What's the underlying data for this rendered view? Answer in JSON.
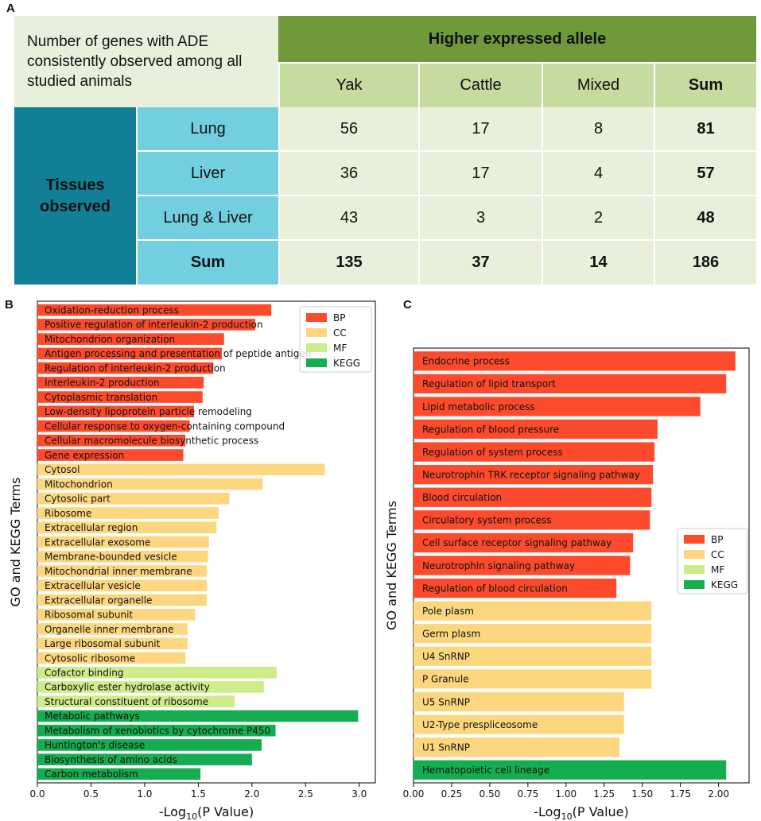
{
  "panels": {
    "a": "A",
    "b": "B",
    "c": "C"
  },
  "table": {
    "title": "Number of genes with ADE consistently observed among all studied animals",
    "group_header": "Higher expressed allele",
    "row_group_label": "Tissues observed",
    "columns": [
      "Yak",
      "Cattle",
      "Mixed",
      "Sum"
    ],
    "rows": [
      {
        "label": "Lung",
        "values": [
          "56",
          "17",
          "8",
          "81"
        ]
      },
      {
        "label": "Liver",
        "values": [
          "36",
          "17",
          "4",
          "57"
        ]
      },
      {
        "label": "Lung & Liver",
        "values": [
          "43",
          "3",
          "2",
          "48"
        ]
      },
      {
        "label": "Sum",
        "values": [
          "135",
          "37",
          "14",
          "186"
        ]
      }
    ]
  },
  "colors": {
    "BP": "#fb4a2c",
    "CC": "#fdd77f",
    "MF": "#cdec8a",
    "KEGG": "#14ad4f",
    "header_green": "#70993a",
    "light_green": "#c5dba0",
    "pale_green": "#e8f0dc",
    "teal_dark": "#117f96",
    "teal_light": "#72cfe0"
  },
  "chart_data": [
    {
      "type": "bar",
      "orientation": "horizontal",
      "panel": "B",
      "xlabel": "-Log10(P Value)",
      "ylabel": "GO and KEGG Terms",
      "xlim": [
        0,
        3.15
      ],
      "xticks": [
        "0.0",
        "0.5",
        "1.0",
        "1.5",
        "2.0",
        "2.5",
        "3.0"
      ],
      "legend": {
        "position": "top-right",
        "entries": [
          "BP",
          "CC",
          "MF",
          "KEGG"
        ]
      },
      "bars": [
        {
          "label": "Oxidation-reduction process",
          "value": 2.18,
          "category": "BP"
        },
        {
          "label": "Positive regulation of interleukin-2 production",
          "value": 2.03,
          "category": "BP"
        },
        {
          "label": "Mitochondrion organization",
          "value": 1.74,
          "category": "BP"
        },
        {
          "label": "Antigen processing and presentation of peptide antigen",
          "value": 1.72,
          "category": "BP"
        },
        {
          "label": "Regulation of interleukin-2 production",
          "value": 1.64,
          "category": "BP"
        },
        {
          "label": "Interleukin-2 production",
          "value": 1.55,
          "category": "BP"
        },
        {
          "label": "Cytoplasmic translation",
          "value": 1.54,
          "category": "BP"
        },
        {
          "label": "Low-density lipoprotein particle remodeling",
          "value": 1.46,
          "category": "BP"
        },
        {
          "label": "Cellular response to oxygen-containing compound",
          "value": 1.42,
          "category": "BP"
        },
        {
          "label": "Cellular macromolecule biosynthetic process",
          "value": 1.38,
          "category": "BP"
        },
        {
          "label": "Gene expression",
          "value": 1.36,
          "category": "BP"
        },
        {
          "label": "Cytosol",
          "value": 2.68,
          "category": "CC"
        },
        {
          "label": "Mitochondrion",
          "value": 2.1,
          "category": "CC"
        },
        {
          "label": "Cytosolic part",
          "value": 1.79,
          "category": "CC"
        },
        {
          "label": "Ribosome",
          "value": 1.69,
          "category": "CC"
        },
        {
          "label": "Extracellular region",
          "value": 1.67,
          "category": "CC"
        },
        {
          "label": "Extracellular exosome",
          "value": 1.6,
          "category": "CC"
        },
        {
          "label": "Membrane-bounded vesicle",
          "value": 1.59,
          "category": "CC"
        },
        {
          "label": "Mitochondrial inner membrane",
          "value": 1.58,
          "category": "CC"
        },
        {
          "label": "Extracellular vesicle",
          "value": 1.58,
          "category": "CC"
        },
        {
          "label": "Extracellular organelle",
          "value": 1.58,
          "category": "CC"
        },
        {
          "label": "Ribosomal subunit",
          "value": 1.47,
          "category": "CC"
        },
        {
          "label": "Organelle inner membrane",
          "value": 1.4,
          "category": "CC"
        },
        {
          "label": "Large ribosomal subunit",
          "value": 1.4,
          "category": "CC"
        },
        {
          "label": "Cytosolic ribosome",
          "value": 1.38,
          "category": "CC"
        },
        {
          "label": "Cofactor binding",
          "value": 2.23,
          "category": "MF"
        },
        {
          "label": "Carboxylic ester hydrolase activity",
          "value": 2.11,
          "category": "MF"
        },
        {
          "label": "Structural constituent of ribosome",
          "value": 1.84,
          "category": "MF"
        },
        {
          "label": "Metabolic pathways",
          "value": 2.99,
          "category": "KEGG"
        },
        {
          "label": "Metabolism of xenobiotics by cytochrome P450",
          "value": 2.22,
          "category": "KEGG"
        },
        {
          "label": "Huntington's disease",
          "value": 2.09,
          "category": "KEGG"
        },
        {
          "label": "Biosynthesis of amino acids",
          "value": 2.0,
          "category": "KEGG"
        },
        {
          "label": "Carbon metabolism",
          "value": 1.52,
          "category": "KEGG"
        }
      ]
    },
    {
      "type": "bar",
      "orientation": "horizontal",
      "panel": "C",
      "xlabel": "-Log10(P Value)",
      "ylabel": "GO and KEGG Terms",
      "xlim": [
        0,
        2.2
      ],
      "xticks": [
        "0.00",
        "0.25",
        "0.50",
        "0.75",
        "1.00",
        "1.25",
        "1.50",
        "1.75",
        "2.00"
      ],
      "legend": {
        "position": "middle-right",
        "entries": [
          "BP",
          "CC",
          "MF",
          "KEGG"
        ]
      },
      "bars": [
        {
          "label": "Endocrine process",
          "value": 2.11,
          "category": "BP"
        },
        {
          "label": "Regulation of lipid transport",
          "value": 2.05,
          "category": "BP"
        },
        {
          "label": "Lipid metabolic process",
          "value": 1.88,
          "category": "BP"
        },
        {
          "label": "Regulation of blood pressure",
          "value": 1.6,
          "category": "BP"
        },
        {
          "label": "Regulation of system process",
          "value": 1.58,
          "category": "BP"
        },
        {
          "label": "Neurotrophin TRK receptor signaling pathway",
          "value": 1.57,
          "category": "BP"
        },
        {
          "label": "Blood circulation",
          "value": 1.56,
          "category": "BP"
        },
        {
          "label": "Circulatory system process",
          "value": 1.55,
          "category": "BP"
        },
        {
          "label": "Cell surface receptor signaling pathway",
          "value": 1.44,
          "category": "BP"
        },
        {
          "label": "Neurotrophin signaling pathway",
          "value": 1.42,
          "category": "BP"
        },
        {
          "label": "Regulation of blood circulation",
          "value": 1.33,
          "category": "BP"
        },
        {
          "label": "Pole plasm",
          "value": 1.56,
          "category": "CC"
        },
        {
          "label": "Germ plasm",
          "value": 1.56,
          "category": "CC"
        },
        {
          "label": "U4 SnRNP",
          "value": 1.56,
          "category": "CC"
        },
        {
          "label": "P Granule",
          "value": 1.56,
          "category": "CC"
        },
        {
          "label": "U5 SnRNP",
          "value": 1.38,
          "category": "CC"
        },
        {
          "label": "U2-Type prespliceosome",
          "value": 1.38,
          "category": "CC"
        },
        {
          "label": "U1 SnRNP",
          "value": 1.35,
          "category": "CC"
        },
        {
          "label": "Hematopoietic cell lineage",
          "value": 2.05,
          "category": "KEGG"
        }
      ]
    }
  ]
}
